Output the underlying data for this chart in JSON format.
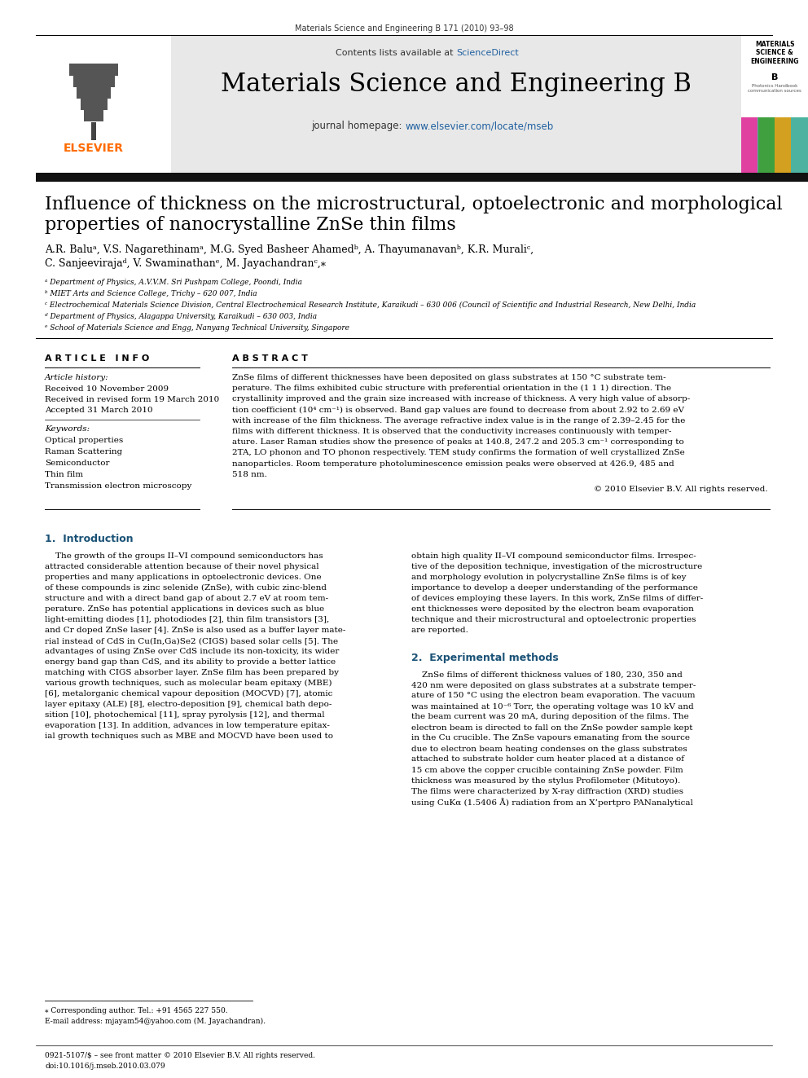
{
  "page_title": "Materials Science and Engineering B 171 (2010) 93–98",
  "journal_name": "Materials Science and Engineering B",
  "contents_list_plain": "Contents lists available at ",
  "contents_list_link": "ScienceDirect",
  "journal_homepage_plain": "journal homepage: ",
  "journal_homepage_link": "www.elsevier.com/locate/mseb",
  "article_title_line1": "Influence of thickness on the microstructural, optoelectronic and morphological",
  "article_title_line2": "properties of nanocrystalline ZnSe thin films",
  "authors_line1": "A.R. Baluᵃ, V.S. Nagarethinamᵃ, M.G. Syed Basheer Ahamedᵇ, A. Thayumanavanᵇ, K.R. Muraliᶜ,",
  "authors_line2": "C. Sanjeevirajaᵈ, V. Swaminathanᵉ, M. Jayachandranᶜ,⁎",
  "affil_a": "ᵃ Department of Physics, A.V.V.M. Sri Pushpam College, Poondi, India",
  "affil_b": "ᵇ MIET Arts and Science College, Trichy – 620 007, India",
  "affil_c": "ᶜ Electrochemical Materials Science Division, Central Electrochemical Research Institute, Karaikudi – 630 006 (Council of Scientific and Industrial Research, New Delhi, India",
  "affil_d": "ᵈ Department of Physics, Alagappa University, Karaikudi – 630 003, India",
  "affil_e": "ᵉ School of Materials Science and Engg, Nanyang Technical University, Singapore",
  "article_info_header": "A R T I C L E   I N F O",
  "abstract_header": "A B S T R A C T",
  "article_history_label": "Article history:",
  "received": "Received 10 November 2009",
  "received_revised": "Received in revised form 19 March 2010",
  "accepted": "Accepted 31 March 2010",
  "keywords_label": "Keywords:",
  "keywords": [
    "Optical properties",
    "Raman Scattering",
    "Semiconductor",
    "Thin film",
    "Transmission electron microscopy"
  ],
  "abstract_lines": [
    "ZnSe films of different thicknesses have been deposited on glass substrates at 150 °C substrate tem-",
    "perature. The films exhibited cubic structure with preferential orientation in the (1 1 1) direction. The",
    "crystallinity improved and the grain size increased with increase of thickness. A very high value of absorp-",
    "tion coefficient (10⁴ cm⁻¹) is observed. Band gap values are found to decrease from about 2.92 to 2.69 eV",
    "with increase of the film thickness. The average refractive index value is in the range of 2.39–2.45 for the",
    "films with different thickness. It is observed that the conductivity increases continuously with temper-",
    "ature. Laser Raman studies show the presence of peaks at 140.8, 247.2 and 205.3 cm⁻¹ corresponding to",
    "2TA, LO phonon and TO phonon respectively. TEM study confirms the formation of well crystallized ZnSe",
    "nanoparticles. Room temperature photoluminescence emission peaks were observed at 426.9, 485 and",
    "518 nm."
  ],
  "copyright": "© 2010 Elsevier B.V. All rights reserved.",
  "intro_header": "1.  Introduction",
  "intro_col1_lines": [
    "    The growth of the groups II–VI compound semiconductors has",
    "attracted considerable attention because of their novel physical",
    "properties and many applications in optoelectronic devices. One",
    "of these compounds is zinc selenide (ZnSe), with cubic zinc-blend",
    "structure and with a direct band gap of about 2.7 eV at room tem-",
    "perature. ZnSe has potential applications in devices such as blue",
    "light-emitting diodes [1], photodiodes [2], thin film transistors [3],",
    "and Cr doped ZnSe laser [4]. ZnSe is also used as a buffer layer mate-",
    "rial instead of CdS in Cu(In,Ga)Se2 (CIGS) based solar cells [5]. The",
    "advantages of using ZnSe over CdS include its non-toxicity, its wider",
    "energy band gap than CdS, and its ability to provide a better lattice",
    "matching with CIGS absorber layer. ZnSe film has been prepared by",
    "various growth techniques, such as molecular beam epitaxy (MBE)",
    "[6], metalorganic chemical vapour deposition (MOCVD) [7], atomic",
    "layer epitaxy (ALE) [8], electro-deposition [9], chemical bath depo-",
    "sition [10], photochemical [11], spray pyrolysis [12], and thermal",
    "evaporation [13]. In addition, advances in low temperature epitax-",
    "ial growth techniques such as MBE and MOCVD have been used to"
  ],
  "intro_col2_lines": [
    "obtain high quality II–VI compound semiconductor films. Irrespec-",
    "tive of the deposition technique, investigation of the microstructure",
    "and morphology evolution in polycrystalline ZnSe films is of key",
    "importance to develop a deeper understanding of the performance",
    "of devices employing these layers. In this work, ZnSe films of differ-",
    "ent thicknesses were deposited by the electron beam evaporation",
    "technique and their microstructural and optoelectronic properties",
    "are reported."
  ],
  "exp_header": "2.  Experimental methods",
  "exp_col2_lines": [
    "    ZnSe films of different thickness values of 180, 230, 350 and",
    "420 nm were deposited on glass substrates at a substrate temper-",
    "ature of 150 °C using the electron beam evaporation. The vacuum",
    "was maintained at 10⁻⁶ Torr, the operating voltage was 10 kV and",
    "the beam current was 20 mA, during deposition of the films. The",
    "electron beam is directed to fall on the ZnSe powder sample kept",
    "in the Cu crucible. The ZnSe vapours emanating from the source",
    "due to electron beam heating condenses on the glass substrates",
    "attached to substrate holder cum heater placed at a distance of",
    "15 cm above the copper crucible containing ZnSe powder. Film",
    "thickness was measured by the stylus Profilometer (Mitutoyo).",
    "The films were characterized by X-ray diffraction (XRD) studies",
    "using CuKα (1.5406 Å) radiation from an X’pertpro PANanalytical"
  ],
  "footnote_star": "⁎ Corresponding author. Tel.: +91 4565 227 550.",
  "footnote_email": "E-mail address: mjayam54@yahoo.com (M. Jayachandran).",
  "footer_issn": "0921-5107/$ – see front matter © 2010 Elsevier B.V. All rights reserved.",
  "footer_doi": "doi:10.1016/j.mseb.2010.03.079",
  "header_bg": "#e8e8e8",
  "dark_bar_color": "#111111",
  "elsevier_color": "#FF6B00",
  "link_color": "#2060a0",
  "section_header_color": "#1a5276",
  "cover_teal": "#4db3a0",
  "cover_pink": "#e040a0",
  "cover_green": "#40a040",
  "cover_yellow": "#d4a020"
}
